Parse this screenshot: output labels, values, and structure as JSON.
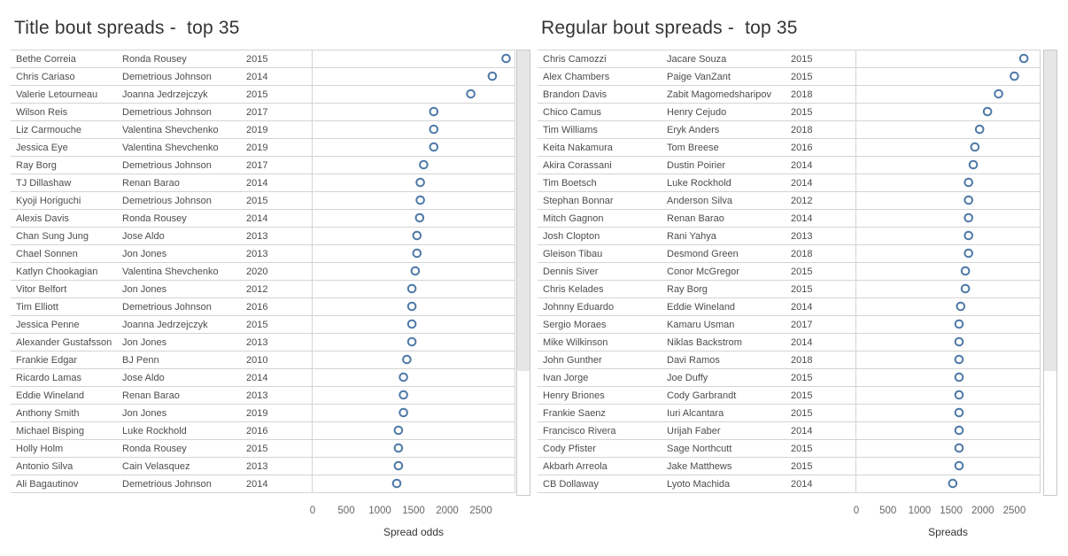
{
  "colors": {
    "marker": "#4e79a7",
    "row_line": "#d4d4d4",
    "scrollbar_thumb": "#e6e6e6",
    "scrollbar_border": "#c8c8c8"
  },
  "chart_data": [
    {
      "type": "scatter",
      "title": "Title bout spreads -  top 35",
      "xlabel": "Spread odds",
      "xlim": [
        0,
        3000
      ],
      "xticks": [
        0,
        500,
        1000,
        1500,
        2000,
        2500
      ],
      "marker": "hollow circle",
      "grid": "horizontal row separators",
      "rows": [
        {
          "fighter": "Bethe Correia",
          "opponent": "Ronda Rousey",
          "year": "2015",
          "value": 2875
        },
        {
          "fighter": "Chris Cariaso",
          "opponent": "Demetrious Johnson",
          "year": "2014",
          "value": 2670
        },
        {
          "fighter": "Valerie Letourneau",
          "opponent": "Joanna Jedrzejczyk",
          "year": "2015",
          "value": 2350
        },
        {
          "fighter": "Wilson Reis",
          "opponent": "Demetrious Johnson",
          "year": "2017",
          "value": 1800
        },
        {
          "fighter": "Liz Carmouche",
          "opponent": "Valentina Shevchenko",
          "year": "2019",
          "value": 1800
        },
        {
          "fighter": "Jessica Eye",
          "opponent": "Valentina Shevchenko",
          "year": "2019",
          "value": 1800
        },
        {
          "fighter": "Ray Borg",
          "opponent": "Demetrious Johnson",
          "year": "2017",
          "value": 1650
        },
        {
          "fighter": "TJ Dillashaw",
          "opponent": "Renan Barao",
          "year": "2014",
          "value": 1600
        },
        {
          "fighter": "Kyoji Horiguchi",
          "opponent": "Demetrious Johnson",
          "year": "2015",
          "value": 1600
        },
        {
          "fighter": "Alexis Davis",
          "opponent": "Ronda Rousey",
          "year": "2014",
          "value": 1590
        },
        {
          "fighter": "Chan Sung Jung",
          "opponent": "Jose Aldo",
          "year": "2013",
          "value": 1550
        },
        {
          "fighter": "Chael Sonnen",
          "opponent": "Jon Jones",
          "year": "2013",
          "value": 1550
        },
        {
          "fighter": "Katlyn Chookagian",
          "opponent": "Valentina Shevchenko",
          "year": "2020",
          "value": 1525
        },
        {
          "fighter": "Vitor Belfort",
          "opponent": "Jon Jones",
          "year": "2012",
          "value": 1475
        },
        {
          "fighter": "Tim Elliott",
          "opponent": "Demetrious Johnson",
          "year": "2016",
          "value": 1475
        },
        {
          "fighter": "Jessica Penne",
          "opponent": "Joanna Jedrzejczyk",
          "year": "2015",
          "value": 1475
        },
        {
          "fighter": "Alexander Gustafsson",
          "opponent": "Jon Jones",
          "year": "2013",
          "value": 1475
        },
        {
          "fighter": "Frankie Edgar",
          "opponent": "BJ Penn",
          "year": "2010",
          "value": 1400
        },
        {
          "fighter": "Ricardo Lamas",
          "opponent": "Jose Aldo",
          "year": "2014",
          "value": 1350
        },
        {
          "fighter": "Eddie Wineland",
          "opponent": "Renan Barao",
          "year": "2013",
          "value": 1350
        },
        {
          "fighter": "Anthony Smith",
          "opponent": "Jon Jones",
          "year": "2019",
          "value": 1350
        },
        {
          "fighter": "Michael Bisping",
          "opponent": "Luke Rockhold",
          "year": "2016",
          "value": 1275
        },
        {
          "fighter": "Holly Holm",
          "opponent": "Ronda Rousey",
          "year": "2015",
          "value": 1275
        },
        {
          "fighter": "Antonio Silva",
          "opponent": "Cain Velasquez",
          "year": "2013",
          "value": 1275
        },
        {
          "fighter": "Ali Bagautinov",
          "opponent": "Demetrious Johnson",
          "year": "2014",
          "value": 1250
        }
      ]
    },
    {
      "type": "scatter",
      "title": "Regular bout spreads -  top 35",
      "xlabel": "Spreads",
      "xlim": [
        0,
        2900
      ],
      "xticks": [
        0,
        500,
        1000,
        1500,
        2000,
        2500
      ],
      "marker": "hollow circle",
      "grid": "horizontal row separators",
      "rows": [
        {
          "fighter": "Chris Camozzi",
          "opponent": "Jacare Souza",
          "year": "2015",
          "value": 2650
        },
        {
          "fighter": "Alex Chambers",
          "opponent": "Paige VanZant",
          "year": "2015",
          "value": 2500
        },
        {
          "fighter": "Brandon Davis",
          "opponent": "Zabit Magomedsharipov",
          "year": "2018",
          "value": 2250
        },
        {
          "fighter": "Chico Camus",
          "opponent": "Henry Cejudo",
          "year": "2015",
          "value": 2075
        },
        {
          "fighter": "Tim Williams",
          "opponent": "Eryk Anders",
          "year": "2018",
          "value": 1950
        },
        {
          "fighter": "Keita Nakamura",
          "opponent": "Tom Breese",
          "year": "2016",
          "value": 1875
        },
        {
          "fighter": "Akira Corassani",
          "opponent": "Dustin Poirier",
          "year": "2014",
          "value": 1850
        },
        {
          "fighter": "Tim Boetsch",
          "opponent": "Luke Rockhold",
          "year": "2014",
          "value": 1775
        },
        {
          "fighter": "Stephan Bonnar",
          "opponent": "Anderson Silva",
          "year": "2012",
          "value": 1775
        },
        {
          "fighter": "Mitch Gagnon",
          "opponent": "Renan Barao",
          "year": "2014",
          "value": 1775
        },
        {
          "fighter": "Josh Clopton",
          "opponent": "Rani Yahya",
          "year": "2013",
          "value": 1775
        },
        {
          "fighter": "Gleison Tibau",
          "opponent": "Desmond Green",
          "year": "2018",
          "value": 1775
        },
        {
          "fighter": "Dennis Siver",
          "opponent": "Conor McGregor",
          "year": "2015",
          "value": 1725
        },
        {
          "fighter": "Chris Kelades",
          "opponent": "Ray Borg",
          "year": "2015",
          "value": 1725
        },
        {
          "fighter": "Johnny Eduardo",
          "opponent": "Eddie Wineland",
          "year": "2014",
          "value": 1650
        },
        {
          "fighter": "Sergio Moraes",
          "opponent": "Kamaru Usman",
          "year": "2017",
          "value": 1625
        },
        {
          "fighter": "Mike Wilkinson",
          "opponent": "Niklas Backstrom",
          "year": "2014",
          "value": 1625
        },
        {
          "fighter": "John Gunther",
          "opponent": "Davi Ramos",
          "year": "2018",
          "value": 1625
        },
        {
          "fighter": "Ivan Jorge",
          "opponent": "Joe Duffy",
          "year": "2015",
          "value": 1625
        },
        {
          "fighter": "Henry Briones",
          "opponent": "Cody Garbrandt",
          "year": "2015",
          "value": 1625
        },
        {
          "fighter": "Frankie Saenz",
          "opponent": "Iuri Alcantara",
          "year": "2015",
          "value": 1625
        },
        {
          "fighter": "Francisco Rivera",
          "opponent": "Urijah Faber",
          "year": "2014",
          "value": 1625
        },
        {
          "fighter": "Cody Pfister",
          "opponent": "Sage Northcutt",
          "year": "2015",
          "value": 1625
        },
        {
          "fighter": "Akbarh Arreola",
          "opponent": "Jake Matthews",
          "year": "2015",
          "value": 1625
        },
        {
          "fighter": "CB Dollaway",
          "opponent": "Lyoto Machida",
          "year": "2014",
          "value": 1525
        }
      ]
    }
  ]
}
